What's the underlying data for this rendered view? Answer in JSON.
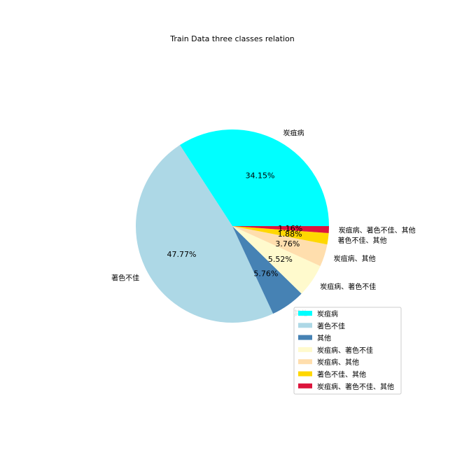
{
  "chart_data": {
    "type": "pie",
    "title": "Train Data three classes relation",
    "categories": [
      "炭疽病",
      "著色不佳",
      "其他",
      "炭疽病、著色不佳",
      "炭疽病、其他",
      "著色不佳、其他",
      "炭疽病、著色不佳、其他"
    ],
    "values": [
      34.15,
      47.77,
      5.76,
      5.52,
      3.76,
      1.88,
      1.16
    ],
    "percent_labels": [
      "34.15%",
      "47.77%",
      "5.76%",
      "5.52%",
      "3.76%",
      "1.88%",
      "1.16%"
    ],
    "colors": [
      "#00ffff",
      "#add8e6",
      "#4682b4",
      "#fffacd",
      "#ffdead",
      "#ffd700",
      "#dc143c"
    ],
    "start_angle_deg": 0,
    "direction": "counterclockwise",
    "legend": {
      "placement": "lower-right",
      "entries": [
        "炭疽病",
        "著色不佳",
        "其他",
        "炭疽病、著色不佳",
        "炭疽病、其他",
        "著色不佳、其他",
        "炭疽病、著色不佳、其他"
      ]
    }
  }
}
